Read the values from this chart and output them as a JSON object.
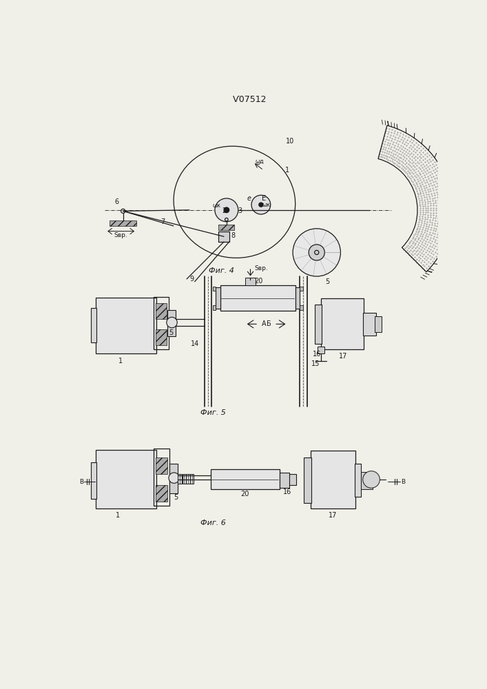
{
  "title": "Ѵ07512",
  "bg_color": "#f0efe8",
  "line_color": "#1a1a1a",
  "fig4_caption": "Фиг. 4",
  "fig5_caption": "Фиг. 5",
  "fig6_caption": "Фиг. 6"
}
